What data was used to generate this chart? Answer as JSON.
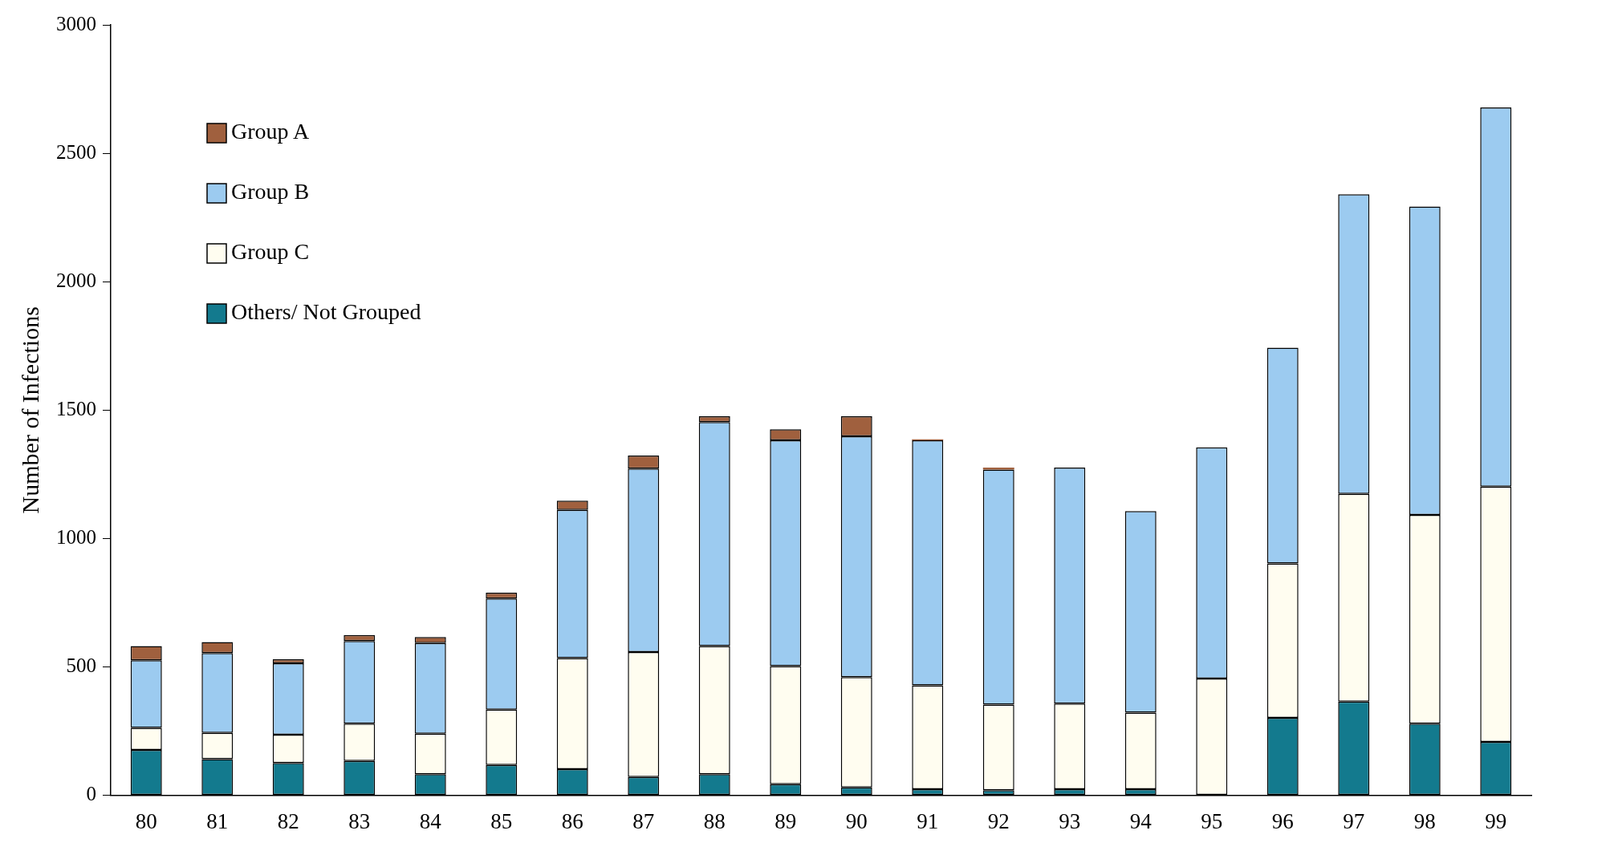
{
  "chart_data": {
    "type": "bar",
    "stacked": true,
    "ylabel": "Number of Infections",
    "categories": [
      "80",
      "81",
      "82",
      "83",
      "84",
      "85",
      "86",
      "87",
      "88",
      "89",
      "90",
      "91",
      "92",
      "93",
      "94",
      "95",
      "96",
      "97",
      "98",
      "99"
    ],
    "series": [
      {
        "name": "Others/ Not Grouped",
        "color": "#137a8e",
        "values": [
          177,
          141,
          126,
          134,
          82,
          118,
          102,
          71,
          82,
          43,
          31,
          24,
          20,
          24,
          24,
          0,
          302,
          365,
          279,
          208
        ]
      },
      {
        "name": "Group C",
        "color": "#fffdf0",
        "values": [
          86,
          102,
          110,
          145,
          158,
          216,
          432,
          487,
          499,
          460,
          429,
          404,
          333,
          333,
          298,
          455,
          601,
          809,
          813,
          994
        ]
      },
      {
        "name": "Group B",
        "color": "#9ccbf0",
        "values": [
          263,
          311,
          278,
          322,
          353,
          432,
          577,
          714,
          872,
          879,
          938,
          954,
          915,
          919,
          785,
          900,
          840,
          1166,
          1201,
          1476
        ]
      },
      {
        "name": "Group A",
        "color": "#a0603e",
        "values": [
          55,
          43,
          16,
          23,
          23,
          23,
          36,
          51,
          23,
          43,
          78,
          4,
          8,
          0,
          0,
          0,
          0,
          0,
          0,
          0
        ]
      }
    ],
    "ylim": [
      0,
      3000
    ],
    "yticks": [
      0,
      500,
      1000,
      1500,
      2000,
      2500,
      3000
    ],
    "grid": false,
    "legend": "top left"
  }
}
